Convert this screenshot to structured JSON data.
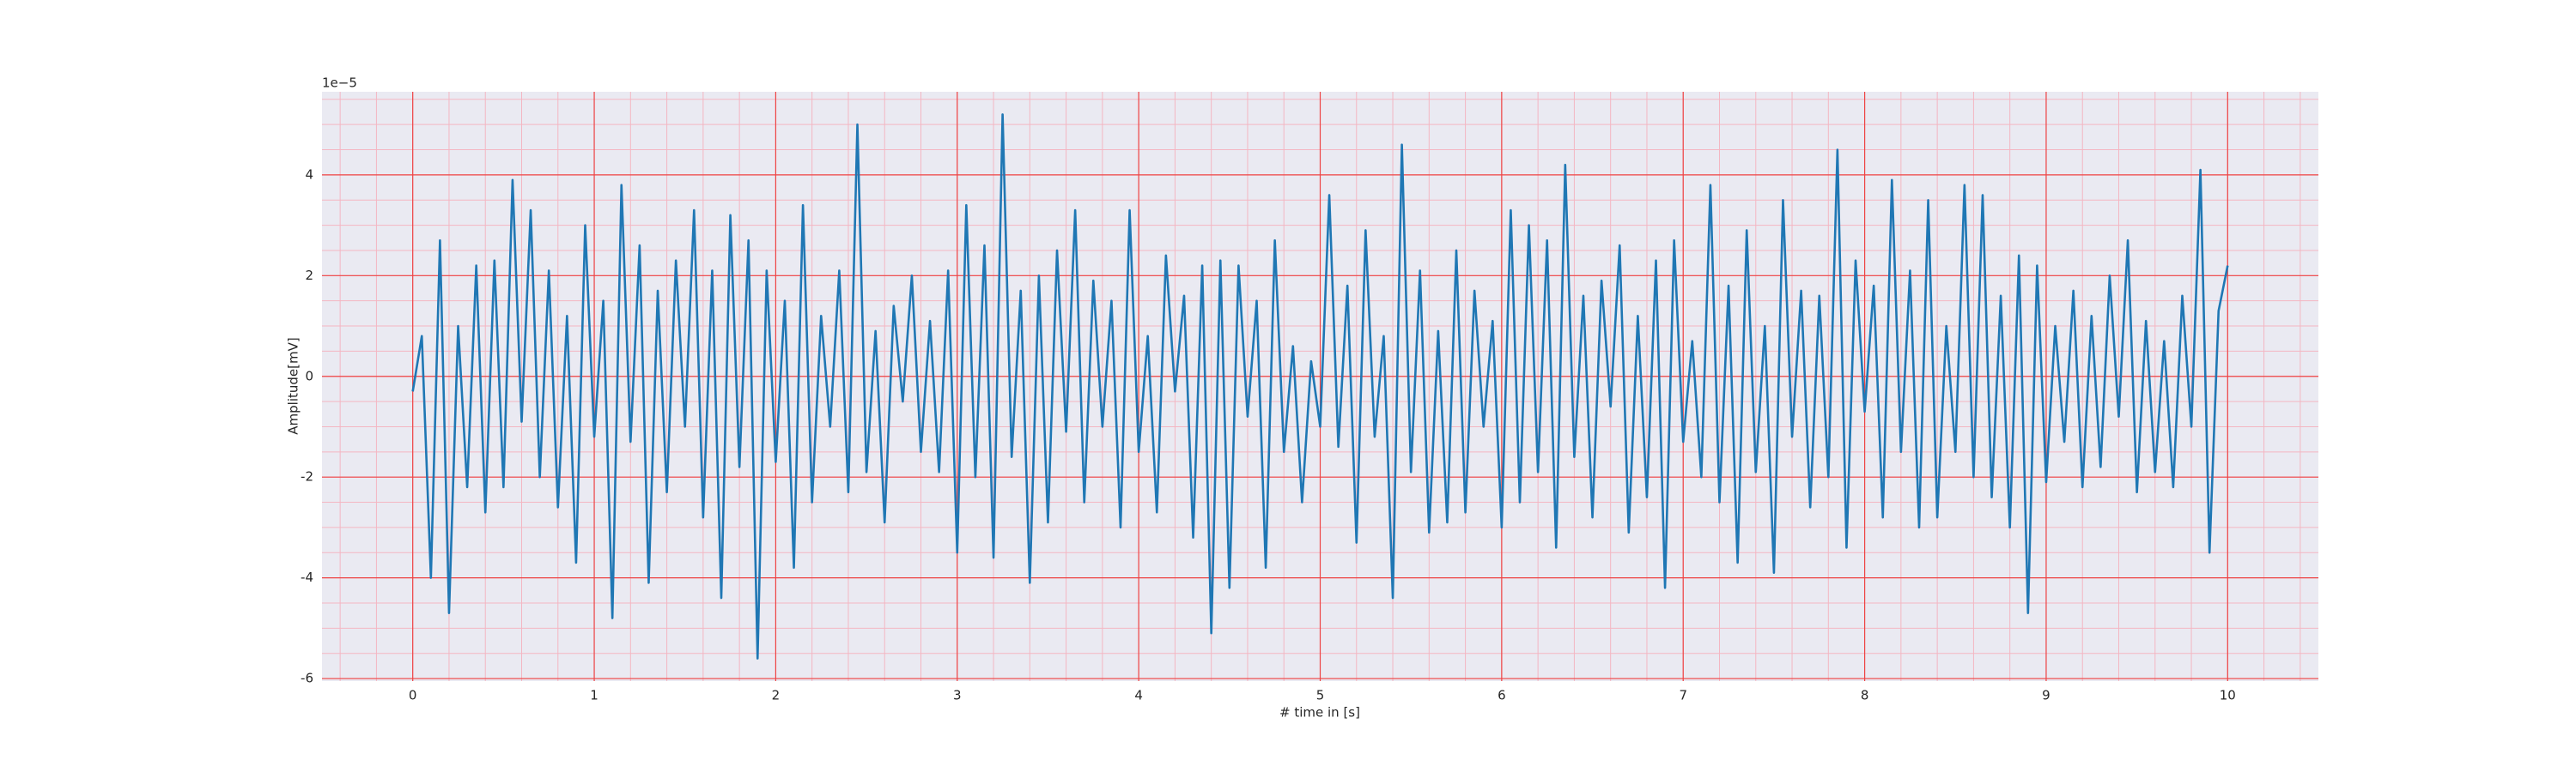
{
  "chart_data": {
    "type": "line",
    "x_label": "# time in [s]",
    "y_label": "Amplitude[mV]",
    "y_offset_label": "1e−5",
    "x": [
      0,
      0.05,
      0.1,
      0.15,
      0.2,
      0.25,
      0.3,
      0.35,
      0.4,
      0.45,
      0.5,
      0.55,
      0.6,
      0.65,
      0.7,
      0.75,
      0.8,
      0.85,
      0.9,
      0.95,
      1,
      1.05,
      1.1,
      1.15,
      1.2,
      1.25,
      1.3,
      1.35,
      1.4,
      1.45,
      1.5,
      1.55,
      1.6,
      1.65,
      1.7,
      1.75,
      1.8,
      1.85,
      1.9,
      1.95,
      2,
      2.05,
      2.1,
      2.15,
      2.2,
      2.25,
      2.3,
      2.35,
      2.4,
      2.45,
      2.5,
      2.55,
      2.6,
      2.65,
      2.7,
      2.75,
      2.8,
      2.85,
      2.9,
      2.95,
      3,
      3.05,
      3.1,
      3.15,
      3.2,
      3.25,
      3.3,
      3.35,
      3.4,
      3.45,
      3.5,
      3.55,
      3.6,
      3.65,
      3.7,
      3.75,
      3.8,
      3.85,
      3.9,
      3.95,
      4,
      4.05,
      4.1,
      4.15,
      4.2,
      4.25,
      4.3,
      4.35,
      4.4,
      4.45,
      4.5,
      4.55,
      4.6,
      4.65,
      4.7,
      4.75,
      4.8,
      4.85,
      4.9,
      4.95,
      5,
      5.05,
      5.1,
      5.15,
      5.2,
      5.25,
      5.3,
      5.35,
      5.4,
      5.45,
      5.5,
      5.55,
      5.6,
      5.65,
      5.7,
      5.75,
      5.8,
      5.85,
      5.9,
      5.95,
      6,
      6.05,
      6.1,
      6.15,
      6.2,
      6.25,
      6.3,
      6.35,
      6.4,
      6.45,
      6.5,
      6.55,
      6.6,
      6.65,
      6.7,
      6.75,
      6.8,
      6.85,
      6.9,
      6.95,
      7,
      7.05,
      7.1,
      7.15,
      7.2,
      7.25,
      7.3,
      7.35,
      7.4,
      7.45,
      7.5,
      7.55,
      7.6,
      7.65,
      7.7,
      7.75,
      7.8,
      7.85,
      7.9,
      7.95,
      8,
      8.05,
      8.1,
      8.15,
      8.2,
      8.25,
      8.3,
      8.35,
      8.4,
      8.45,
      8.5,
      8.55,
      8.6,
      8.65,
      8.7,
      8.75,
      8.8,
      8.85,
      8.9,
      8.95,
      9,
      9.05,
      9.1,
      9.15,
      9.2,
      9.25,
      9.3,
      9.35,
      9.4,
      9.45,
      9.5,
      9.55,
      9.6,
      9.65,
      9.7,
      9.75,
      9.8,
      9.85,
      9.9,
      9.95,
      10
    ],
    "series": [
      {
        "color": "#1f77b4",
        "values": [
          -0.3,
          0.8,
          -4.0,
          2.7,
          -4.7,
          1.0,
          -2.2,
          2.2,
          -2.7,
          2.3,
          -2.2,
          3.9,
          -0.9,
          3.3,
          -2.0,
          2.1,
          -2.6,
          1.2,
          -3.7,
          3.0,
          -1.2,
          1.5,
          -4.8,
          3.8,
          -1.3,
          2.6,
          -4.1,
          1.7,
          -2.3,
          2.3,
          -1.0,
          3.3,
          -2.8,
          2.1,
          -4.4,
          3.2,
          -1.8,
          2.7,
          -5.6,
          2.1,
          -1.7,
          1.5,
          -3.8,
          3.4,
          -2.5,
          1.2,
          -1.0,
          2.1,
          -2.3,
          5.0,
          -1.9,
          0.9,
          -2.9,
          1.4,
          -0.5,
          2.0,
          -1.5,
          1.1,
          -1.9,
          2.1,
          -3.5,
          3.4,
          -2.0,
          2.6,
          -3.6,
          5.2,
          -1.6,
          1.7,
          -4.1,
          2.0,
          -2.9,
          2.5,
          -1.1,
          3.3,
          -2.5,
          1.9,
          -1.0,
          1.5,
          -3.0,
          3.3,
          -1.5,
          0.8,
          -2.7,
          2.4,
          -0.3,
          1.6,
          -3.2,
          2.2,
          -5.1,
          2.3,
          -4.2,
          2.2,
          -0.8,
          1.5,
          -3.8,
          2.7,
          -1.5,
          0.6,
          -2.5,
          0.3,
          -1.0,
          3.6,
          -1.4,
          1.8,
          -3.3,
          2.9,
          -1.2,
          0.8,
          -4.4,
          4.6,
          -1.9,
          2.1,
          -3.1,
          0.9,
          -2.9,
          2.5,
          -2.7,
          1.7,
          -1.0,
          1.1,
          -3.0,
          3.3,
          -2.5,
          3.0,
          -1.9,
          2.7,
          -3.4,
          4.2,
          -1.6,
          1.6,
          -2.8,
          1.9,
          -0.6,
          2.6,
          -3.1,
          1.2,
          -2.4,
          2.3,
          -4.2,
          2.7,
          -1.3,
          0.7,
          -2.0,
          3.8,
          -2.5,
          1.8,
          -3.7,
          2.9,
          -1.9,
          1.0,
          -3.9,
          3.5,
          -1.2,
          1.7,
          -2.6,
          1.6,
          -2.0,
          4.5,
          -3.4,
          2.3,
          -0.7,
          1.8,
          -2.8,
          3.9,
          -1.5,
          2.1,
          -3.0,
          3.5,
          -2.8,
          1.0,
          -1.5,
          3.8,
          -2.0,
          3.6,
          -2.4,
          1.6,
          -3.0,
          2.4,
          -4.7,
          2.2,
          -2.1,
          1.0,
          -1.3,
          1.7,
          -2.2,
          1.2,
          -1.8,
          2.0,
          -0.8,
          2.7,
          -2.3,
          1.1,
          -1.9,
          0.7,
          -2.2,
          1.6,
          -1.0,
          4.1,
          -3.5,
          1.3,
          2.2
        ]
      }
    ],
    "xlim": [
      -0.5,
      10.5
    ],
    "xticks": [
      0,
      1,
      2,
      3,
      4,
      5,
      6,
      7,
      8,
      9,
      10
    ],
    "ylim": [
      -6.05,
      5.65
    ],
    "yticks": [
      -6,
      -4,
      -2,
      0,
      2,
      4
    ],
    "grid": true,
    "minor_grid": true
  }
}
